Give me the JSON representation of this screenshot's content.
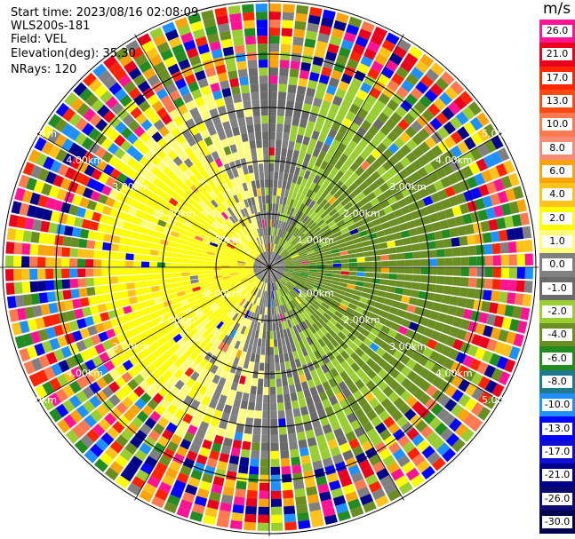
{
  "header": {
    "start_time": "Start time: 2023/08/16 02:08:09",
    "station": "WLS200s-181",
    "field": "Field: VEL",
    "elevation": "Elevation(deg): 35.30",
    "nrays": "NRays: 120"
  },
  "unit": "m/s",
  "colorbar": [
    {
      "label": "26.0",
      "color": "#ff1493"
    },
    {
      "label": "21.0",
      "color": "#e8001c"
    },
    {
      "label": "17.0",
      "color": "#ff2400"
    },
    {
      "label": "13.0",
      "color": "#ff4a14"
    },
    {
      "label": "10.0",
      "color": "#ff7a50"
    },
    {
      "label": "8.0",
      "color": "#f58c78"
    },
    {
      "label": "6.0",
      "color": "#f9a40a"
    },
    {
      "label": "4.0",
      "color": "#ffc21a"
    },
    {
      "label": "2.0",
      "color": "#ffff00"
    },
    {
      "label": "1.0",
      "color": "#fdfd7a"
    },
    {
      "label": "0.0",
      "color": "#808080"
    },
    {
      "label": "-1.0",
      "color": "#6b6b6b"
    },
    {
      "label": "-2.0",
      "color": "#9acd32"
    },
    {
      "label": "-4.0",
      "color": "#6b8e23"
    },
    {
      "label": "-6.0",
      "color": "#228b22"
    },
    {
      "label": "-8.0",
      "color": "#1e7a8c"
    },
    {
      "label": "-10.0",
      "color": "#1e90ff"
    },
    {
      "label": "-13.0",
      "color": "#0000ff"
    },
    {
      "label": "-17.0",
      "color": "#1010d0"
    },
    {
      "label": "-21.0",
      "color": "#00008b"
    },
    {
      "label": "-26.0",
      "color": "#0a0a70"
    },
    {
      "label": "-30.0",
      "color": "#000050"
    }
  ],
  "range_labels": [
    "1.00km",
    "2.00km",
    "3.00km",
    "4.00km",
    "5.00km"
  ],
  "noise_palette": [
    "#ff1493",
    "#e8001c",
    "#ff2400",
    "#ff7a50",
    "#f9a40a",
    "#ffff00",
    "#9acd32",
    "#228b22",
    "#1e90ff",
    "#0000ff",
    "#00008b",
    "#808080",
    "#6b8e23",
    "#ffc21a"
  ]
}
